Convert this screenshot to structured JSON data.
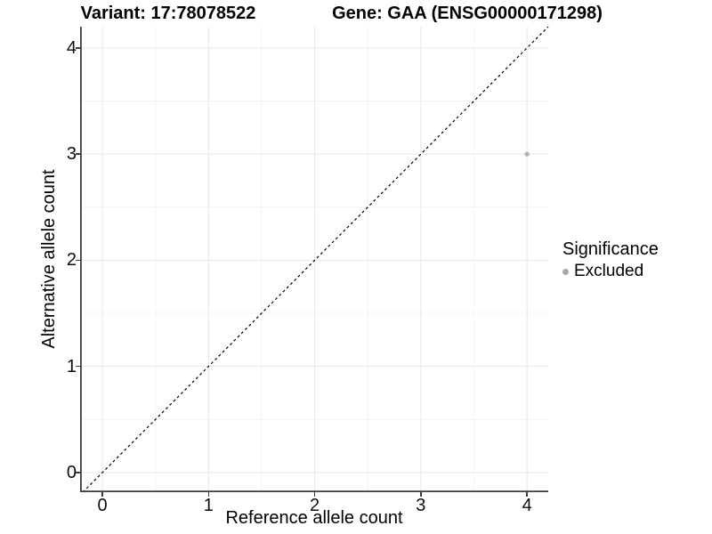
{
  "chart_data": {
    "type": "scatter",
    "title_left": "Variant: 17:78078522",
    "title_right": "Gene: GAA (ENSG00000171298)",
    "xlabel": "Reference allele count",
    "ylabel": "Alternative allele count",
    "xlim": [
      -0.21,
      4.2
    ],
    "ylim": [
      -0.185,
      4.2
    ],
    "x_ticks": [
      0,
      1,
      2,
      3,
      4
    ],
    "y_ticks": [
      0,
      1,
      2,
      3,
      4
    ],
    "x_minor_ticks": [
      0.5,
      1.5,
      2.5,
      3.5
    ],
    "y_minor_ticks": [
      0.5,
      1.5,
      2.5,
      3.5
    ],
    "grid": "major+minor",
    "points": [
      {
        "x": 4,
        "y": 3,
        "series": "Excluded"
      }
    ],
    "identity_line": {
      "slope": 1,
      "intercept": 0,
      "style": "dashed"
    },
    "legend": {
      "position": "right",
      "title": "Significance",
      "entries": [
        {
          "label": "Excluded",
          "color": "#a9a9a9"
        }
      ]
    },
    "colors": {
      "point": "#b2b2b2",
      "grid_major": "#e8e8e8",
      "grid_minor": "#f3f3f3",
      "axis_line": "#3d3d3d",
      "identity_line": "#000000",
      "text": "#000000"
    }
  }
}
